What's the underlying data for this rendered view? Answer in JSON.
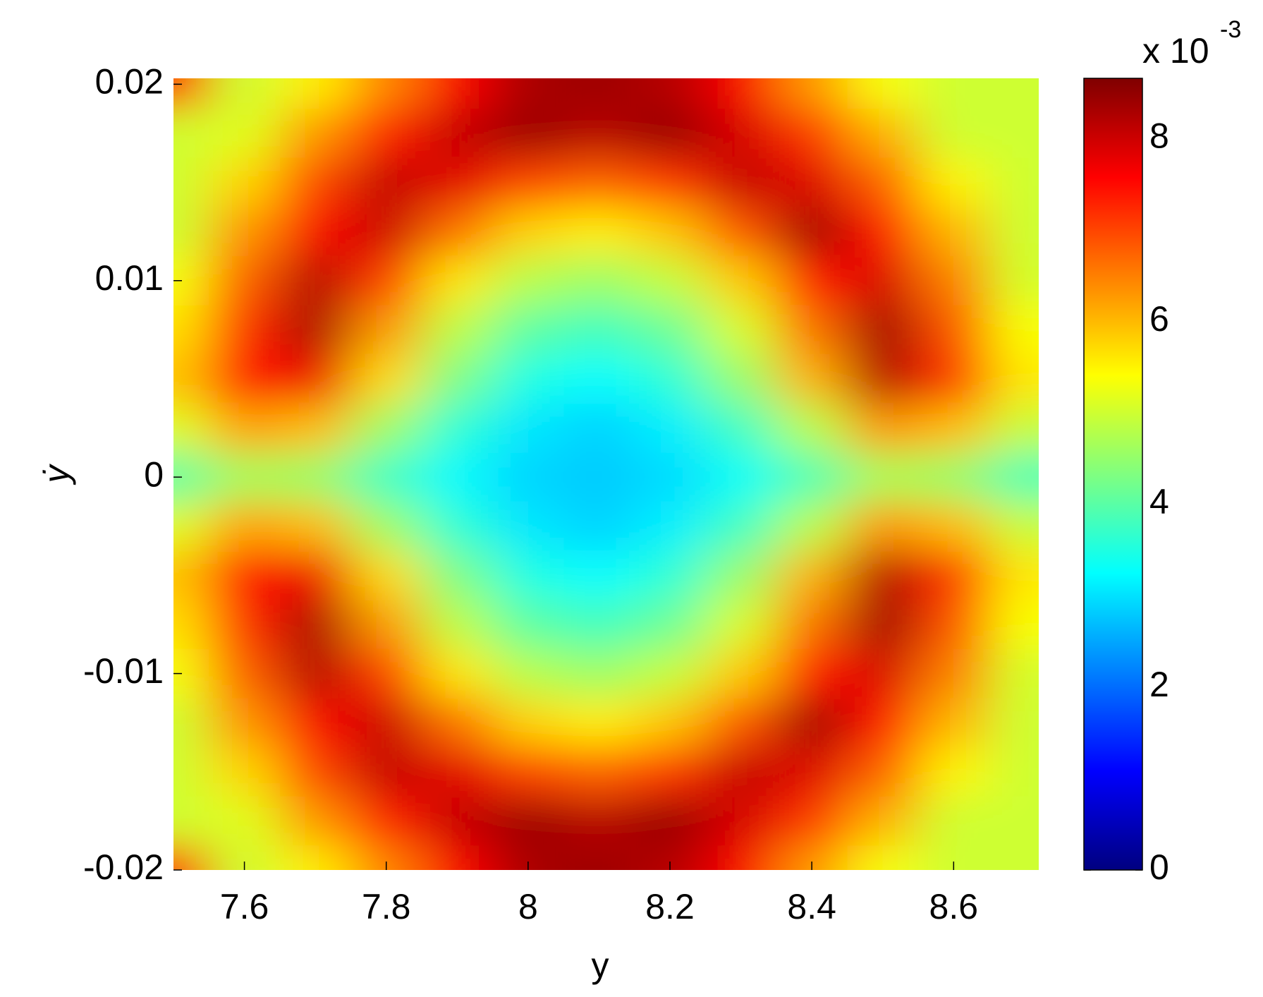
{
  "chart_data": {
    "type": "heatmap",
    "xlabel": "y",
    "ylabel": "ẏ",
    "x": [
      7.5,
      7.6,
      7.7,
      7.8,
      7.9,
      8.0,
      8.1,
      8.2,
      8.3,
      8.4,
      8.5,
      8.6,
      8.7
    ],
    "y": [
      0.02,
      0.0175,
      0.015,
      0.0125,
      0.01,
      0.0075,
      0.005,
      0.0025,
      0,
      -0.0025,
      -0.005,
      -0.0075,
      -0.01,
      -0.0125,
      -0.015,
      -0.0175,
      -0.02
    ],
    "z": [
      [
        7.4,
        5.0,
        5.55,
        6.46,
        7.6,
        8.3,
        8.4,
        8.2,
        7.6,
        6.29,
        5.35,
        5.0,
        5.0
      ],
      [
        5.0,
        5.15,
        6.3,
        7.28,
        8.06,
        8.43,
        8.19,
        8.47,
        7.92,
        7.1,
        6.08,
        5.0,
        5.0
      ],
      [
        5.0,
        5.76,
        6.99,
        8.07,
        7.82,
        7.0,
        6.76,
        7.11,
        8.06,
        7.86,
        6.75,
        5.51,
        5.0
      ],
      [
        5.0,
        6.32,
        7.62,
        8.02,
        6.61,
        5.79,
        5.55,
        5.91,
        6.85,
        8.37,
        7.37,
        6.04,
        5.0
      ],
      [
        5.34,
        6.79,
        8.18,
        7.04,
        5.62,
        4.8,
        4.57,
        4.92,
        5.86,
        7.39,
        7.91,
        6.5,
        5.04
      ],
      [
        5.67,
        7.18,
        8.27,
        6.27,
        4.85,
        4.03,
        3.8,
        4.15,
        5.09,
        6.62,
        8.35,
        6.88,
        5.36
      ],
      [
        5.92,
        7.46,
        7.71,
        5.71,
        4.3,
        3.48,
        3.24,
        3.6,
        4.54,
        6.07,
        8.19,
        7.16,
        5.6
      ],
      [
        5.14,
        6.19,
        5.98,
        4.59,
        3.61,
        3.04,
        2.88,
        3.12,
        3.78,
        4.83,
        6.3,
        5.98,
        4.93
      ],
      [
        3.98,
        4.66,
        4.53,
        3.75,
        3.21,
        2.89,
        2.8,
        2.94,
        3.3,
        3.89,
        4.71,
        4.52,
        3.84
      ],
      [
        5.14,
        6.19,
        5.98,
        4.59,
        3.61,
        3.04,
        2.88,
        3.12,
        3.78,
        4.83,
        6.3,
        5.98,
        4.93
      ],
      [
        5.92,
        7.46,
        7.71,
        5.71,
        4.3,
        3.48,
        3.24,
        3.6,
        4.54,
        6.07,
        8.19,
        7.16,
        5.6
      ],
      [
        5.67,
        7.18,
        8.27,
        6.27,
        4.85,
        4.03,
        3.8,
        4.15,
        5.09,
        6.62,
        8.35,
        6.88,
        5.36
      ],
      [
        5.34,
        6.79,
        8.18,
        7.04,
        5.62,
        4.8,
        4.57,
        4.92,
        5.86,
        7.39,
        7.91,
        6.5,
        5.04
      ],
      [
        5.0,
        6.32,
        7.62,
        8.02,
        6.61,
        5.79,
        5.55,
        5.91,
        6.85,
        8.37,
        7.37,
        6.04,
        5.0
      ],
      [
        5.0,
        5.76,
        6.99,
        8.07,
        7.82,
        7.0,
        6.76,
        7.11,
        8.06,
        7.86,
        6.75,
        5.51,
        5.0
      ],
      [
        5.0,
        5.15,
        6.3,
        7.28,
        8.06,
        8.43,
        8.19,
        8.47,
        7.92,
        7.1,
        6.08,
        5.0,
        5.0
      ],
      [
        7.4,
        5.0,
        5.55,
        6.46,
        7.6,
        8.3,
        8.4,
        8.2,
        7.6,
        6.29,
        5.35,
        5.0,
        5.0
      ]
    ],
    "xlim": [
      7.5,
      8.72
    ],
    "xticks": [
      7.6,
      7.8,
      8,
      8.2,
      8.4,
      8.6
    ],
    "ylim": [
      -0.02,
      0.0203
    ],
    "yticks": [
      -0.02,
      -0.01,
      0,
      0.01,
      0.02
    ],
    "colormap": "jet",
    "clim": [
      0,
      8.66
    ],
    "cticks": [
      0,
      2,
      4,
      6,
      8
    ],
    "colorbar_multiplier": "x 10",
    "colorbar_exponent": "-3"
  }
}
